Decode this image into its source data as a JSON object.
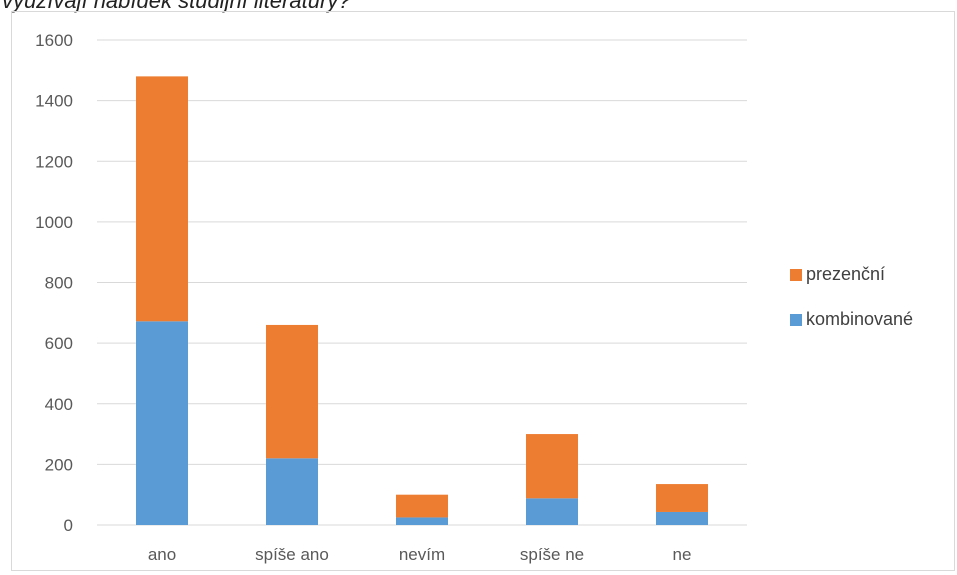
{
  "title": "využívají nabídek studijní literatury?",
  "chart_data": {
    "type": "bar",
    "stacked": true,
    "categories": [
      "ano",
      "spíše ano",
      "nevím",
      "spíše ne",
      "ne"
    ],
    "series": [
      {
        "name": "kombinované",
        "color": "#5B9BD5",
        "values": [
          672,
          220,
          25,
          88,
          43
        ]
      },
      {
        "name": "prezenční",
        "color": "#ED7D31",
        "values": [
          808,
          440,
          75,
          212,
          92
        ]
      }
    ],
    "yticks": [
      0,
      200,
      400,
      600,
      800,
      1000,
      1200,
      1400,
      1600
    ],
    "ylim": [
      0,
      1600
    ],
    "grid": true,
    "legend_position": "right"
  }
}
